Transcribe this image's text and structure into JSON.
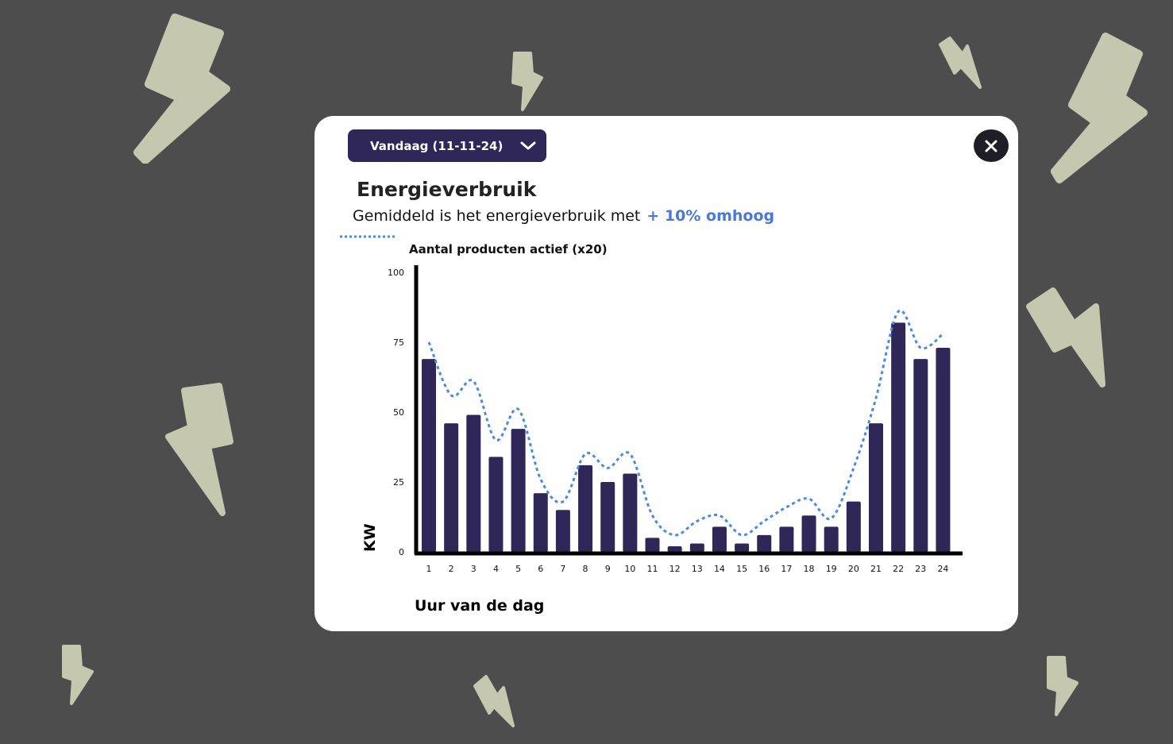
{
  "background_color": "#4d4d4d",
  "bolt_color": "#c5c8ae",
  "dropdown": {
    "selected": "Vandaag (11-11-24)",
    "icon": "chevron-down-icon"
  },
  "close": {
    "icon": "close-icon"
  },
  "title": "Energieverbruik",
  "subtitle": {
    "text": "Gemiddeld is het energieverbruik met",
    "highlight": "+ 10% omhoog",
    "highlight_color": "#4a78d6"
  },
  "chart_data": {
    "type": "bar",
    "legend_label": "Aantal producten actief (x20)",
    "xlabel": "Uur van de dag",
    "ylabel": "KW",
    "categories": [
      "1",
      "2",
      "3",
      "4",
      "5",
      "6",
      "7",
      "8",
      "9",
      "10",
      "11",
      "12",
      "13",
      "14",
      "15",
      "16",
      "17",
      "18",
      "19",
      "20",
      "21",
      "22",
      "23",
      "24"
    ],
    "y_ticks": [
      "100",
      "75",
      "50",
      "25",
      "0"
    ],
    "series": [
      {
        "values": [
          69,
          46,
          49,
          34,
          44,
          21,
          15,
          31,
          25,
          28,
          5,
          2,
          3,
          9,
          3,
          6,
          9,
          13,
          9,
          18,
          46,
          82,
          69,
          73
        ],
        "color": "#2f2757"
      },
      {
        "name": "Aantal producten actief (x20)",
        "style": "dotted-line",
        "values": [
          75,
          56,
          61,
          40,
          51,
          26,
          18,
          35,
          30,
          35,
          13,
          6,
          11,
          13,
          6,
          11,
          16,
          19,
          12,
          30,
          55,
          86,
          73,
          78
        ],
        "color": "#4a8ae0"
      }
    ]
  }
}
